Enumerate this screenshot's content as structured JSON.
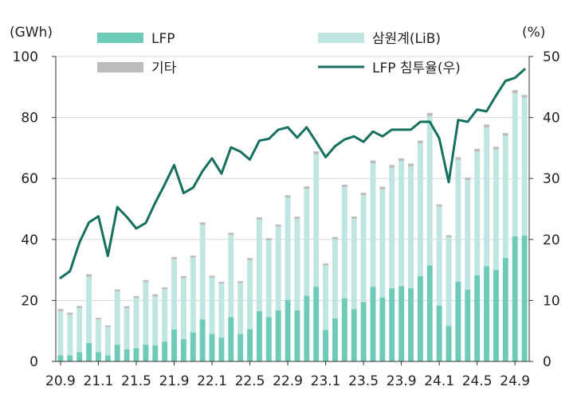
{
  "chart_data": {
    "type": "bar",
    "stacked": true,
    "title": "",
    "ylabel_left": "(GWh)",
    "ylabel_right": "(%)",
    "ylim_left": [
      0,
      100
    ],
    "ylim_right": [
      0,
      50
    ],
    "yticks_left": [
      "0",
      "20",
      "40",
      "60",
      "80",
      "100"
    ],
    "yticks_right": [
      "0",
      "10",
      "20",
      "30",
      "40",
      "50"
    ],
    "xtick_labels": [
      "20.9",
      "21.1",
      "21.5",
      "21.9",
      "22.1",
      "22.5",
      "22.9",
      "23.1",
      "23.5",
      "23.9",
      "24.1",
      "24.5",
      "24.9"
    ],
    "xtick_indices": [
      0,
      4,
      8,
      12,
      16,
      20,
      24,
      28,
      32,
      36,
      40,
      44,
      48
    ],
    "colors": {
      "lfp": "#6ecbb8",
      "lib": "#bfe6e1",
      "other": "#bcbcbc",
      "line": "#16705f"
    },
    "legend": {
      "lfp": "LFP",
      "lib": "삼원계(LiB)",
      "other": "기타",
      "line": "LFP 침투율(우)"
    },
    "categories": [
      "20.9",
      "20.10",
      "20.11",
      "20.12",
      "21.1",
      "21.2",
      "21.3",
      "21.4",
      "21.5",
      "21.6",
      "21.7",
      "21.8",
      "21.9",
      "21.10",
      "21.11",
      "21.12",
      "22.1",
      "22.2",
      "22.3",
      "22.4",
      "22.5",
      "22.6",
      "22.7",
      "22.8",
      "22.9",
      "22.10",
      "22.11",
      "22.12",
      "23.1",
      "23.2",
      "23.3",
      "23.4",
      "23.5",
      "23.6",
      "23.7",
      "23.8",
      "23.9",
      "23.10",
      "23.11",
      "23.12",
      "24.1",
      "24.2",
      "24.3",
      "24.4",
      "24.5",
      "24.6",
      "24.7",
      "24.8",
      "24.9",
      "24.10"
    ],
    "series": [
      {
        "name": "LFP",
        "values": [
          2,
          2,
          3,
          6,
          3,
          2,
          5.5,
          4,
          4.3,
          5.5,
          5.3,
          6.5,
          10.5,
          7.3,
          9.5,
          13.8,
          9,
          7.8,
          14.5,
          9,
          10.6,
          16.5,
          14.5,
          16.7,
          20.2,
          16.7,
          21.6,
          24.5,
          10.3,
          14.1,
          20.7,
          17.1,
          19.5,
          24.5,
          21,
          24,
          24.7,
          24,
          28,
          31.5,
          18.3,
          11.7,
          26.1,
          23.5,
          28.3,
          31.2,
          30,
          34,
          41,
          41.3
        ]
      },
      {
        "name": "삼원계(LiB)",
        "values": [
          14.5,
          13.3,
          14.5,
          21.8,
          10.8,
          9.3,
          17.5,
          13.5,
          16.5,
          20.5,
          16,
          17.2,
          23,
          20,
          24.5,
          31,
          18.5,
          17.7,
          27,
          16.7,
          22.6,
          30,
          25.2,
          27.5,
          33.5,
          30,
          35,
          43.5,
          21.2,
          26,
          36.5,
          29.7,
          35,
          40.5,
          35.5,
          39.5,
          41,
          40,
          43.5,
          49,
          32.5,
          29,
          40,
          36,
          40.5,
          45.5,
          39.5,
          40,
          47,
          45.2
        ]
      },
      {
        "name": "기타",
        "values": [
          0.7,
          0.7,
          0.7,
          0.8,
          0.5,
          0.5,
          0.6,
          0.6,
          0.6,
          0.7,
          0.7,
          0.6,
          0.7,
          0.7,
          0.7,
          0.8,
          0.6,
          0.6,
          0.7,
          0.6,
          0.7,
          0.8,
          0.7,
          0.7,
          0.8,
          0.8,
          0.8,
          0.9,
          0.6,
          0.7,
          0.8,
          0.7,
          0.8,
          0.9,
          0.8,
          0.9,
          0.9,
          0.9,
          0.9,
          1,
          0.7,
          0.7,
          0.9,
          0.8,
          0.9,
          1,
          0.9,
          0.9,
          1,
          0.9
        ]
      },
      {
        "name": "LFP 침투율(우)",
        "axis": "right",
        "values": [
          13.7,
          14.8,
          19.5,
          22.8,
          23.8,
          17.3,
          25.3,
          23.7,
          21.8,
          22.7,
          26.0,
          29.0,
          32.2,
          27.6,
          28.5,
          31.2,
          33.3,
          30.8,
          35.1,
          34.4,
          33.1,
          36.2,
          36.5,
          38.0,
          38.4,
          36.7,
          38.4,
          36.0,
          33.5,
          35.3,
          36.4,
          36.9,
          36.0,
          37.7,
          36.9,
          38.0,
          38.0,
          38.0,
          39.3,
          39.3,
          36.6,
          29.4,
          39.6,
          39.3,
          41.3,
          41.0,
          43.6,
          46.0,
          46.5,
          47.9
        ]
      }
    ]
  }
}
